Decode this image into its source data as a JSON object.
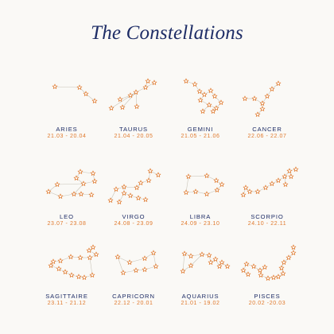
{
  "title": "The Constellations",
  "colors": {
    "star": "#e07a2e",
    "line": "#c9c4b8",
    "text": "#1e2d66"
  },
  "signs": [
    {
      "name": "ARIES",
      "dates": "21.03 - 20.04"
    },
    {
      "name": "TAURUS",
      "dates": "21.04 - 20.05"
    },
    {
      "name": "GEMINI",
      "dates": "21.05 - 21.06"
    },
    {
      "name": "CANCER",
      "dates": "22.06 - 22.07"
    },
    {
      "name": "LEO",
      "dates": "23.07 - 23.08"
    },
    {
      "name": "VIRGO",
      "dates": "24.08 - 23.09"
    },
    {
      "name": "LIBRA",
      "dates": "24.09 - 23.10"
    },
    {
      "name": "SCORPIO",
      "dates": "24.10 - 22.11"
    },
    {
      "name": "SAGITTAIRE",
      "dates": "23.11 - 21.12"
    },
    {
      "name": "CAPRICORN",
      "dates": "22.12 - 20.01"
    },
    {
      "name": "AQUARIUS",
      "dates": "21.01 - 19.02"
    },
    {
      "name": "PISCES",
      "dates": "20.02 -20.03"
    }
  ]
}
